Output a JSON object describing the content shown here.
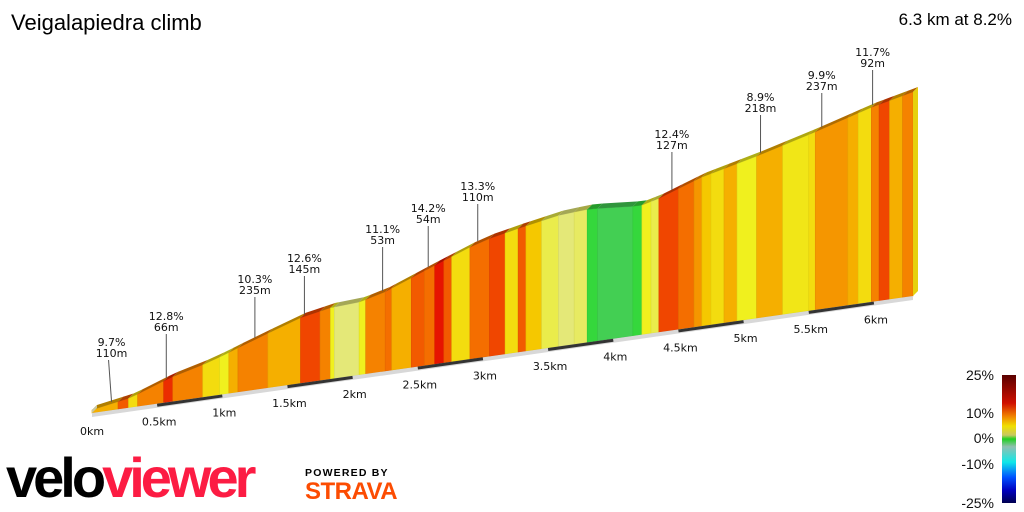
{
  "header": {
    "title": "Veigalapiedra climb",
    "summary": "6.3 km at 8.2%"
  },
  "branding": {
    "logo_left": "velo",
    "logo_right": "viewer",
    "powered_by": "POWERED BY",
    "partner": "STRAVA",
    "logo_colors": {
      "velo": "#000000",
      "viewer": "#fc1c43",
      "strava": "#fc4c02"
    }
  },
  "chart_data": {
    "type": "area",
    "title": "Veigalapiedra climb",
    "total_distance_km": 6.3,
    "average_gradient_pct": 8.2,
    "x_ticks": [
      "0km",
      "0.5km",
      "1km",
      "1.5km",
      "2km",
      "2.5km",
      "3km",
      "3.5km",
      "4km",
      "4.5km",
      "5km",
      "5.5km",
      "6km"
    ],
    "x_tick_values": [
      0,
      0.5,
      1,
      1.5,
      2,
      2.5,
      3,
      3.5,
      4,
      4.5,
      5,
      5.5,
      6
    ],
    "segments": [
      {
        "start_km": 0,
        "gradient": 8
      },
      {
        "start_km": 0.2,
        "gradient": 12
      },
      {
        "start_km": 0.28,
        "gradient": 6
      },
      {
        "start_km": 0.35,
        "gradient": 10
      },
      {
        "start_km": 0.55,
        "gradient": 14
      },
      {
        "start_km": 0.62,
        "gradient": 10
      },
      {
        "start_km": 0.85,
        "gradient": 6
      },
      {
        "start_km": 0.98,
        "gradient": 5
      },
      {
        "start_km": 1.05,
        "gradient": 8
      },
      {
        "start_km": 1.12,
        "gradient": 10
      },
      {
        "start_km": 1.35,
        "gradient": 8
      },
      {
        "start_km": 1.6,
        "gradient": 13
      },
      {
        "start_km": 1.75,
        "gradient": 10
      },
      {
        "start_km": 1.83,
        "gradient": 5
      },
      {
        "start_km": 1.86,
        "gradient": 3
      },
      {
        "start_km": 2.05,
        "gradient": 5
      },
      {
        "start_km": 2.1,
        "gradient": 10
      },
      {
        "start_km": 2.25,
        "gradient": 11
      },
      {
        "start_km": 2.3,
        "gradient": 8
      },
      {
        "start_km": 2.45,
        "gradient": 12
      },
      {
        "start_km": 2.55,
        "gradient": 11
      },
      {
        "start_km": 2.63,
        "gradient": 15
      },
      {
        "start_km": 2.7,
        "gradient": 12
      },
      {
        "start_km": 2.76,
        "gradient": 6
      },
      {
        "start_km": 2.9,
        "gradient": 11
      },
      {
        "start_km": 3.05,
        "gradient": 13
      },
      {
        "start_km": 3.17,
        "gradient": 6
      },
      {
        "start_km": 3.27,
        "gradient": 12
      },
      {
        "start_km": 3.33,
        "gradient": 7
      },
      {
        "start_km": 3.45,
        "gradient": 4
      },
      {
        "start_km": 3.58,
        "gradient": 3
      },
      {
        "start_km": 3.7,
        "gradient": 3.5
      },
      {
        "start_km": 3.8,
        "gradient": 0.5
      },
      {
        "start_km": 3.88,
        "gradient": -1
      },
      {
        "start_km": 4.15,
        "gradient": 0.5
      },
      {
        "start_km": 4.22,
        "gradient": 5
      },
      {
        "start_km": 4.29,
        "gradient": 4
      },
      {
        "start_km": 4.35,
        "gradient": 13
      },
      {
        "start_km": 4.5,
        "gradient": 11
      },
      {
        "start_km": 4.62,
        "gradient": 9
      },
      {
        "start_km": 4.68,
        "gradient": 7
      },
      {
        "start_km": 4.75,
        "gradient": 6
      },
      {
        "start_km": 4.85,
        "gradient": 8
      },
      {
        "start_km": 4.95,
        "gradient": 5
      },
      {
        "start_km": 5.1,
        "gradient": 8
      },
      {
        "start_km": 5.3,
        "gradient": 5.5
      },
      {
        "start_km": 5.5,
        "gradient": 6
      },
      {
        "start_km": 5.55,
        "gradient": 9
      },
      {
        "start_km": 5.8,
        "gradient": 8
      },
      {
        "start_km": 5.88,
        "gradient": 6
      },
      {
        "start_km": 5.98,
        "gradient": 10
      },
      {
        "start_km": 6.04,
        "gradient": 13
      },
      {
        "start_km": 6.12,
        "gradient": 8
      },
      {
        "start_km": 6.22,
        "gradient": 10
      },
      {
        "start_km": 6.33,
        "gradient": 6
      }
    ],
    "annotations": [
      {
        "km": 0.15,
        "gradient": "9.7%",
        "length": "110m"
      },
      {
        "km": 0.57,
        "gradient": "12.8%",
        "length": "66m"
      },
      {
        "km": 1.25,
        "gradient": "10.3%",
        "length": "235m"
      },
      {
        "km": 1.63,
        "gradient": "12.6%",
        "length": "145m"
      },
      {
        "km": 2.23,
        "gradient": "11.1%",
        "length": "53m"
      },
      {
        "km": 2.58,
        "gradient": "14.2%",
        "length": "54m"
      },
      {
        "km": 2.96,
        "gradient": "13.3%",
        "length": "110m"
      },
      {
        "km": 4.45,
        "gradient": "12.4%",
        "length": "127m"
      },
      {
        "km": 5.13,
        "gradient": "8.9%",
        "length": "218m"
      },
      {
        "km": 5.6,
        "gradient": "9.9%",
        "length": "237m"
      },
      {
        "km": 5.99,
        "gradient": "11.7%",
        "length": "92m"
      }
    ],
    "legend": {
      "labels": [
        "25%",
        "10%",
        "0%",
        "-10%",
        "-25%"
      ],
      "values": [
        25,
        10,
        0,
        -10,
        -25
      ],
      "colors": [
        "#5a0000",
        "#e01000",
        "#f7e600",
        "#1fcf1f",
        "#10e0e0",
        "#0010e0",
        "#000060"
      ]
    }
  }
}
